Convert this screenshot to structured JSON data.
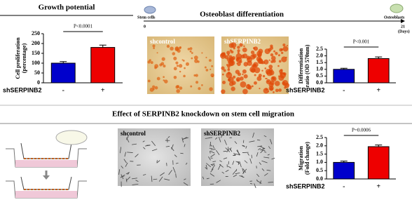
{
  "chart_data": [
    {
      "type": "bar",
      "title": "Growth potential",
      "ylabel": [
        "Cell proliferation",
        "(percentage)"
      ],
      "xlabel": "shSERPINB2",
      "categories": [
        "-",
        "+"
      ],
      "values": [
        100,
        180
      ],
      "errors": [
        8,
        12
      ],
      "colors": [
        "#0000cc",
        "#ee0000"
      ],
      "ylim": [
        0,
        250
      ],
      "yticks": [
        0,
        50,
        100,
        150,
        200,
        250
      ],
      "annotation": "P<0.0001"
    },
    {
      "type": "bar",
      "ylabel": [
        "Differentiation",
        "ratio (OD 570nm)"
      ],
      "xlabel": "shSERPINB2",
      "categories": [
        "-",
        "+"
      ],
      "values": [
        1.0,
        1.8
      ],
      "errors": [
        0.08,
        0.12
      ],
      "colors": [
        "#0000cc",
        "#ee0000"
      ],
      "ylim": [
        0,
        2.5
      ],
      "yticks": [
        {
          "value": 0,
          "label": "0.0"
        },
        {
          "value": 0.5,
          "label": "0.5"
        },
        {
          "value": 1,
          "label": "1.0"
        },
        {
          "value": 1.5,
          "label": "1.5"
        },
        {
          "value": 2,
          "label": "2.0"
        },
        {
          "value": 2.5,
          "label": "2.5"
        }
      ],
      "annotation": "P<0.001"
    },
    {
      "type": "bar",
      "ylabel": [
        "Migration",
        "(Fold change)"
      ],
      "xlabel": "shSERPINB2",
      "categories": [
        "-",
        "+"
      ],
      "values": [
        1.0,
        1.95
      ],
      "errors": [
        0.08,
        0.1
      ],
      "colors": [
        "#0000cc",
        "#ee0000"
      ],
      "ylim": [
        0,
        2.5
      ],
      "yticks": [
        {
          "value": 0,
          "label": "0.0"
        },
        {
          "value": 0.5,
          "label": "0.5"
        },
        {
          "value": 1,
          "label": "1.0"
        },
        {
          "value": 1.5,
          "label": "1.5"
        },
        {
          "value": 2,
          "label": "2.0"
        },
        {
          "value": 2.5,
          "label": "2.5"
        }
      ],
      "annotation": "P=0.0006"
    }
  ],
  "figure": {
    "differentiation_title": "Osteoblast differentiation",
    "timeline_start": "Stem cells",
    "timeline_end": "Osteoblasts",
    "day_start": "0",
    "day_end": "21",
    "day_unit": "(Days)",
    "diff_images": [
      "shcontrol",
      "shSERPINB2"
    ],
    "migration_title": "Effect of SERPINB2 knockdown on stem cell migration",
    "migration_images": [
      "shcontrol",
      "shSERPINB2"
    ]
  }
}
